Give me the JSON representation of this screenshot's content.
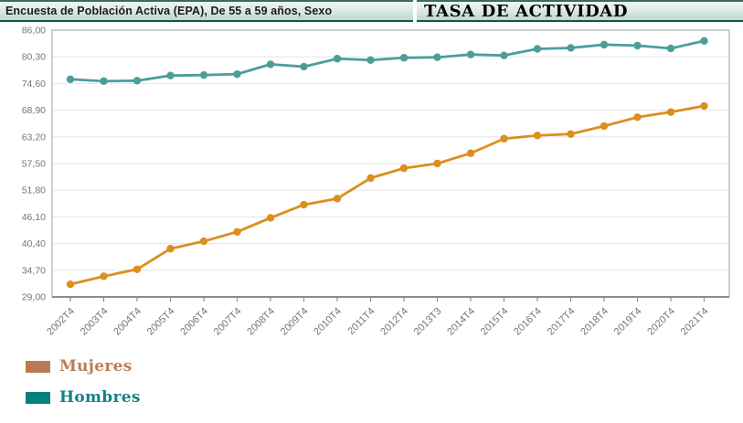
{
  "header": {
    "subtitle": "Encuesta de Población Activa (EPA), De 55 a 59 años, Sexo",
    "title": "TASA DE ACTIVIDAD"
  },
  "legend": {
    "items": [
      {
        "label": "Mujeres",
        "swatch_color": "#b87c55",
        "text_color": "#bb7e52"
      },
      {
        "label": "Hombres",
        "swatch_color": "#057f80",
        "text_color": "#0e8287"
      }
    ]
  },
  "colors": {
    "mujeres_line": "#db8f1e",
    "hombres_line": "#4c9e9a",
    "grid": "#e5e5e5",
    "panel_border": "#b9b9b9",
    "axis": "#8c8c8c",
    "tick_text": "#757575",
    "header_border_dark": "#14544d"
  },
  "chart_data": {
    "type": "line",
    "title": "TASA DE ACTIVIDAD",
    "subtitle": "Encuesta de Población Activa (EPA), De 55 a 59 años, Sexo",
    "categories": [
      "2002T4",
      "2003T4",
      "2004T4",
      "2005T4",
      "2006T4",
      "2007T4",
      "2008T4",
      "2009T4",
      "2010T4",
      "2011T4",
      "2012T4",
      "2013T3",
      "2014T4",
      "2015T4",
      "2016T4",
      "2017T4",
      "2018T4",
      "2019T4",
      "2020T4",
      "2021T4"
    ],
    "series": [
      {
        "name": "Mujeres",
        "color": "#db8f1e",
        "values": [
          31.7,
          33.4,
          34.9,
          39.3,
          40.9,
          42.9,
          45.9,
          48.7,
          50.0,
          54.4,
          56.5,
          57.5,
          59.7,
          62.8,
          63.5,
          63.8,
          65.5,
          67.4,
          68.5,
          69.8
        ]
      },
      {
        "name": "Hombres",
        "color": "#4c9e9a",
        "values": [
          75.5,
          75.1,
          75.2,
          76.3,
          76.4,
          76.6,
          78.7,
          78.2,
          79.9,
          79.6,
          80.1,
          80.2,
          80.8,
          80.6,
          82.0,
          82.2,
          82.9,
          82.7,
          82.1,
          83.7
        ]
      }
    ],
    "ylim": [
      29.0,
      86.0
    ],
    "ytick_step": 5.7,
    "ytick_labels": [
      "86,00",
      "80,30",
      "74,60",
      "68,90",
      "63,20",
      "57,50",
      "51,80",
      "46,10",
      "40,40",
      "34,70",
      "29,00"
    ],
    "xlabel": "",
    "ylabel": "",
    "grid": true,
    "legend_position": "bottom-left"
  }
}
